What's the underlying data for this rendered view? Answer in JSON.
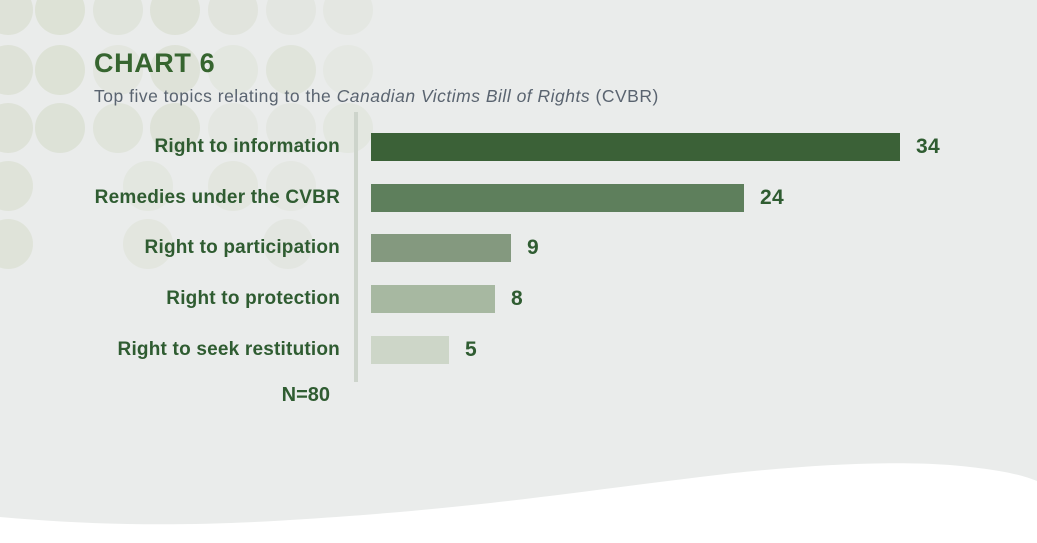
{
  "page": {
    "background_color": "#eaeceb",
    "wave_color": "#ffffff",
    "accent_green": "#36652f"
  },
  "header": {
    "title": "CHART 6",
    "subtitle_prefix": "Top five topics relating to the ",
    "subtitle_italic": "Canadian Victims Bill of Rights",
    "subtitle_suffix": " (CVBR)"
  },
  "chart_data": {
    "type": "bar",
    "orientation": "horizontal",
    "title": "CHART 6",
    "subtitle": "Top five topics relating to the Canadian Victims Bill of Rights (CVBR)",
    "categories": [
      "Right to information",
      "Remedies under the CVBR",
      "Right to participation",
      "Right to protection",
      "Right to seek restitution"
    ],
    "values": [
      34,
      24,
      9,
      8,
      5
    ],
    "bar_colors": [
      "#3b6137",
      "#5e7f5c",
      "#84997f",
      "#a7b8a1",
      "#cdd6c8"
    ],
    "label_color": "#2f5c31",
    "value_color": "#2f5c31",
    "axis_color": "#cdd4cb",
    "sample_size_label": "N=80",
    "xlabel": "",
    "ylabel": "",
    "xlim": [
      0,
      36
    ],
    "grid": false,
    "legend": false,
    "data_labels": true
  }
}
